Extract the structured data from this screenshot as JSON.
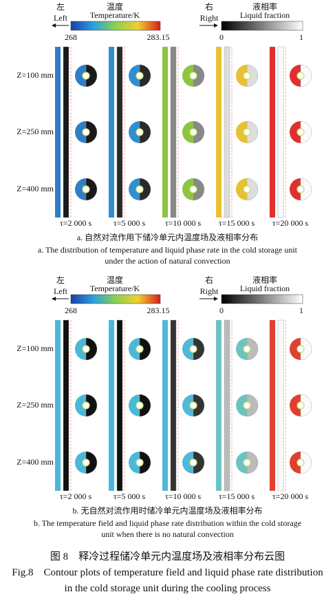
{
  "panels": [
    {
      "legend": {
        "left_cn": "左",
        "left_en": "Left",
        "temp_cn": "温度",
        "temp_en": "Temperature/K",
        "temp_min": 268,
        "temp_max": 283.15,
        "right_cn": "右",
        "right_en": "Right",
        "liq_cn": "液相率",
        "liq_en": "Liquid fraction",
        "liq_min": 0,
        "liq_max": 1
      },
      "rows": [
        "Z=100 mm",
        "Z=250 mm",
        "Z=400 mm"
      ],
      "times": [
        "τ=2 000 s",
        "τ=5 000 s",
        "τ=10 000 s",
        "τ=15 000 s",
        "τ=20 000 s"
      ],
      "caption_cn": "a. 自然对流作用下储冷单元内温度场及液相率分布",
      "caption_en": "a. The distribution of temperature and liquid phase rate in the cold storage unit under the action of natural convection"
    },
    {
      "legend": {
        "left_cn": "左",
        "left_en": "Left",
        "temp_cn": "温度",
        "temp_en": "Temperature/K",
        "temp_min": 268,
        "temp_max": 283.15,
        "right_cn": "右",
        "right_en": "Right",
        "liq_cn": "液相率",
        "liq_en": "Liquid fraction",
        "liq_min": 0,
        "liq_max": 1
      },
      "rows": [
        "Z=100 mm",
        "Z=250 mm",
        "Z=400 mm"
      ],
      "times": [
        "τ=2 000 s",
        "τ=5 000 s",
        "τ=10 000 s",
        "τ=15 000 s",
        "τ=20 000 s"
      ],
      "caption_cn": "b. 无自然对流作用时储冷单元内温度场及液相率分布",
      "caption_en": "b. The temperature field and liquid phase rate distribution within the cold storage unit when there is no natural convection"
    }
  ],
  "figure_caption": {
    "cn": "图 8　释冷过程储冷单元内温度场及液相率分布云图",
    "en": "Fig.8　Contour plots of temperature field and liquid phase rate distribution in the cold storage unit during the cooling process"
  }
}
